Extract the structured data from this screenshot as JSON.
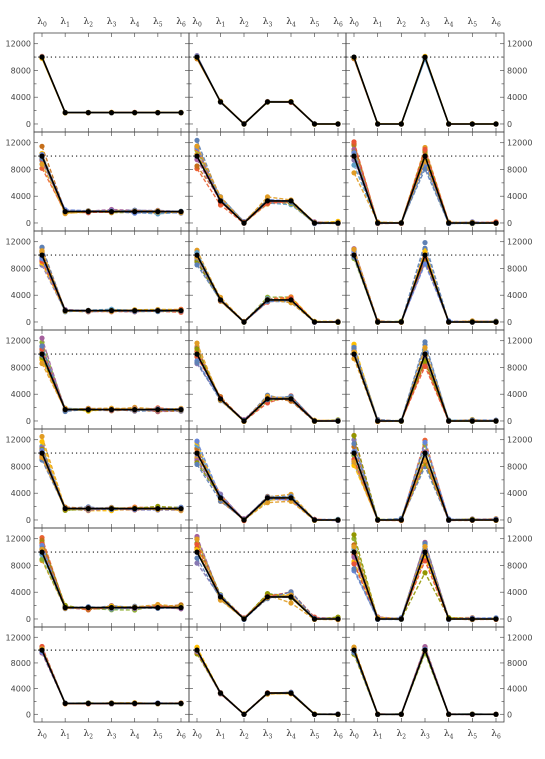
{
  "figure": {
    "rows": 7,
    "cols": 3
  },
  "chart_data": {
    "type": "line",
    "x_ticks": [
      "λ0",
      "λ1",
      "λ2",
      "λ3",
      "λ4",
      "λ5",
      "λ6"
    ],
    "y_ticks": [
      "0",
      "4000",
      "8000",
      "12000"
    ],
    "ylim": [
      -1200,
      13600
    ],
    "reference_line": 10000,
    "grid": false,
    "series_colors": [
      "#5e81b5",
      "#e19c24",
      "#8fb032",
      "#eb6235",
      "#8778b3",
      "#c56e1a",
      "#5d9ec7",
      "#ffbf00",
      "#a5609d",
      "#929600",
      "#e95536",
      "#6685d9"
    ],
    "target_color": "#000000",
    "truth_patterns": [
      [
        10000,
        1700,
        1700,
        1700,
        1700,
        1700,
        1700
      ],
      [
        10000,
        3300,
        0,
        3300,
        3300,
        0,
        0
      ],
      [
        10000,
        0,
        0,
        10000,
        0,
        0,
        0
      ]
    ],
    "row_noise": [
      0.03,
      0.22,
      0.15,
      0.18,
      0.2,
      0.25,
      0.06
    ]
  }
}
